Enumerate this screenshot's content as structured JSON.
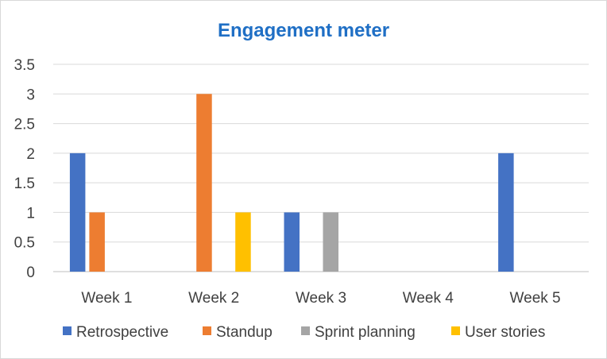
{
  "chart_data": {
    "type": "bar",
    "title": "Engagement meter",
    "categories": [
      "Week 1",
      "Week 2",
      "Week 3",
      "Week 4",
      "Week 5"
    ],
    "series": [
      {
        "name": "Retrospective",
        "color": "#4472c4",
        "values": [
          2,
          0,
          1,
          0,
          2
        ]
      },
      {
        "name": "Standup",
        "color": "#ed7d31",
        "values": [
          1,
          3,
          0,
          0,
          0
        ]
      },
      {
        "name": "Sprint planning",
        "color": "#a5a5a5",
        "values": [
          0,
          0,
          1,
          0,
          0
        ]
      },
      {
        "name": "User stories",
        "color": "#ffc000",
        "values": [
          0,
          1,
          0,
          0,
          0
        ]
      }
    ],
    "ylim": [
      0,
      3.5
    ],
    "yticks": [
      "0",
      "0.5",
      "1",
      "1.5",
      "2",
      "2.5",
      "3",
      "3.5"
    ],
    "grid": true,
    "legend": "bottom"
  }
}
